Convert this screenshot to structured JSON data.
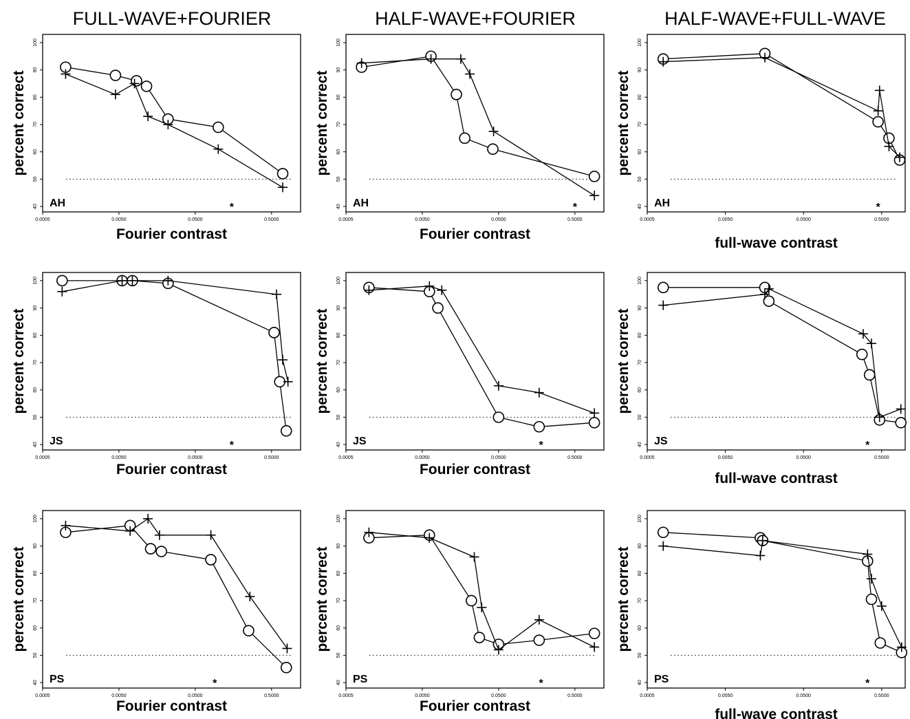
{
  "column_titles": [
    "FULL-WAVE+FOURIER",
    "HALF-WAVE+FOURIER",
    "HALF-WAVE+FULL-WAVE"
  ],
  "ylabel": "percent correct",
  "y_ticks": [
    "40",
    "50",
    "60",
    "70",
    "80",
    "90",
    "100"
  ],
  "x_ticks": [
    "0.0005",
    "0.0050",
    "0.0500",
    "0.5000"
  ],
  "chance_level": 50,
  "style": {
    "line_color": "#000000",
    "chance_line": "dotted"
  },
  "chart_data": [
    {
      "type": "line",
      "row": 0,
      "col": 0,
      "subject": "AH",
      "xlabel": "Fourier contrast",
      "xscale": "log",
      "xlim": [
        0.0005,
        1.2
      ],
      "ylim": [
        38,
        103
      ],
      "star_x": 0.15,
      "series": [
        {
          "marker": "circle",
          "x": [
            0.001,
            0.0045,
            0.0085,
            0.0115,
            0.022,
            0.1,
            0.7
          ],
          "y": [
            91,
            88,
            86,
            84,
            72,
            69,
            52
          ]
        },
        {
          "marker": "plus",
          "x": [
            0.001,
            0.0045,
            0.008,
            0.012,
            0.022,
            0.1,
            0.7
          ],
          "y": [
            88.5,
            81,
            85,
            73,
            70,
            61,
            47
          ]
        }
      ]
    },
    {
      "type": "line",
      "row": 0,
      "col": 1,
      "subject": "AH",
      "xlabel": "Fourier contrast",
      "xscale": "log",
      "xlim": [
        0.0005,
        1.2
      ],
      "ylim": [
        38,
        103
      ],
      "star_x": 0.5,
      "series": [
        {
          "marker": "circle",
          "x": [
            0.0008,
            0.0065,
            0.014,
            0.018,
            0.042,
            0.9
          ],
          "y": [
            91,
            95,
            81,
            65,
            61,
            51
          ]
        },
        {
          "marker": "plus",
          "x": [
            0.0008,
            0.0065,
            0.016,
            0.021,
            0.043,
            0.9
          ],
          "y": [
            92.5,
            94,
            94,
            88.5,
            67.5,
            44
          ]
        }
      ]
    },
    {
      "type": "line",
      "row": 0,
      "col": 2,
      "subject": "AH",
      "xlabel": "full-wave contrast",
      "xscale": "log",
      "xlim": [
        0.0005,
        1.0
      ],
      "ylim": [
        38,
        103
      ],
      "star_x": 0.45,
      "series": [
        {
          "marker": "circle",
          "x": [
            0.0008,
            0.016,
            0.45,
            0.62,
            0.85
          ],
          "y": [
            94,
            96,
            71,
            65,
            57
          ]
        },
        {
          "marker": "plus",
          "x": [
            0.0008,
            0.016,
            0.45,
            0.47,
            0.62,
            0.85
          ],
          "y": [
            93,
            94.5,
            75,
            82.5,
            62,
            58
          ]
        }
      ]
    },
    {
      "type": "line",
      "row": 1,
      "col": 0,
      "subject": "JS",
      "xlabel": "Fourier contrast",
      "xscale": "log",
      "xlim": [
        0.0005,
        1.2
      ],
      "ylim": [
        38,
        103
      ],
      "star_x": 0.15,
      "series": [
        {
          "marker": "circle",
          "x": [
            0.0009,
            0.0055,
            0.0075,
            0.022,
            0.54,
            0.64,
            0.78
          ],
          "y": [
            100,
            100,
            100,
            99,
            81,
            63,
            45
          ]
        },
        {
          "marker": "plus",
          "x": [
            0.0009,
            0.0055,
            0.0075,
            0.022,
            0.58,
            0.7,
            0.82
          ],
          "y": [
            96,
            100,
            100,
            100,
            95,
            71,
            63
          ]
        }
      ]
    },
    {
      "type": "line",
      "row": 1,
      "col": 1,
      "subject": "JS",
      "xlabel": "Fourier contrast",
      "xscale": "log",
      "xlim": [
        0.0005,
        1.2
      ],
      "ylim": [
        38,
        103
      ],
      "star_x": 0.18,
      "series": [
        {
          "marker": "circle",
          "x": [
            0.001,
            0.0062,
            0.008,
            0.05,
            0.17,
            0.9
          ],
          "y": [
            97.5,
            96,
            90,
            50,
            46.5,
            48
          ]
        },
        {
          "marker": "plus",
          "x": [
            0.001,
            0.0062,
            0.009,
            0.05,
            0.17,
            0.9
          ],
          "y": [
            96.5,
            98,
            96.5,
            61.5,
            59,
            51.5
          ]
        }
      ]
    },
    {
      "type": "line",
      "row": 1,
      "col": 2,
      "subject": "JS",
      "xlabel": "full-wave contrast",
      "xscale": "log",
      "xlim": [
        0.0005,
        1.0
      ],
      "ylim": [
        38,
        103
      ],
      "star_x": 0.33,
      "series": [
        {
          "marker": "circle",
          "x": [
            0.0008,
            0.016,
            0.018,
            0.28,
            0.35,
            0.47,
            0.88
          ],
          "y": [
            97.5,
            97.5,
            92.5,
            73,
            65.5,
            49,
            48
          ]
        },
        {
          "marker": "plus",
          "x": [
            0.0008,
            0.016,
            0.018,
            0.29,
            0.37,
            0.47,
            0.88
          ],
          "y": [
            91,
            95,
            97,
            80.5,
            77,
            50,
            53
          ]
        }
      ]
    },
    {
      "type": "line",
      "row": 2,
      "col": 0,
      "subject": "PS",
      "xlabel": "Fourier contrast",
      "xscale": "log",
      "xlim": [
        0.0005,
        1.2
      ],
      "ylim": [
        38,
        103
      ],
      "star_x": 0.09,
      "series": [
        {
          "marker": "circle",
          "x": [
            0.001,
            0.007,
            0.013,
            0.018,
            0.08,
            0.25,
            0.78
          ],
          "y": [
            95,
            97.5,
            89,
            88,
            85,
            59,
            45.5
          ]
        },
        {
          "marker": "plus",
          "x": [
            0.001,
            0.007,
            0.012,
            0.017,
            0.08,
            0.26,
            0.8
          ],
          "y": [
            97.5,
            95.5,
            100,
            94,
            94,
            71.5,
            52.5
          ]
        }
      ]
    },
    {
      "type": "line",
      "row": 2,
      "col": 1,
      "subject": "PS",
      "xlabel": "Fourier contrast",
      "xscale": "log",
      "xlim": [
        0.0005,
        1.2
      ],
      "ylim": [
        38,
        103
      ],
      "star_x": 0.18,
      "series": [
        {
          "marker": "circle",
          "x": [
            0.001,
            0.0062,
            0.022,
            0.028,
            0.05,
            0.17,
            0.9
          ],
          "y": [
            93,
            94,
            70,
            56.5,
            54,
            55.5,
            58
          ]
        },
        {
          "marker": "plus",
          "x": [
            0.001,
            0.0062,
            0.024,
            0.03,
            0.05,
            0.17,
            0.9
          ],
          "y": [
            95,
            93,
            86,
            67.5,
            52,
            63,
            53
          ]
        }
      ]
    },
    {
      "type": "line",
      "row": 2,
      "col": 2,
      "subject": "PS",
      "xlabel": "full-wave contrast",
      "xscale": "log",
      "xlim": [
        0.0005,
        1.0
      ],
      "ylim": [
        38,
        103
      ],
      "star_x": 0.33,
      "series": [
        {
          "marker": "circle",
          "x": [
            0.0008,
            0.014,
            0.015,
            0.33,
            0.37,
            0.48,
            0.9
          ],
          "y": [
            95,
            93,
            92,
            84.5,
            70.5,
            54.5,
            51
          ]
        },
        {
          "marker": "plus",
          "x": [
            0.0008,
            0.014,
            0.015,
            0.33,
            0.37,
            0.5,
            0.9
          ],
          "y": [
            90,
            86.5,
            92,
            87,
            78,
            68,
            53
          ]
        }
      ]
    }
  ]
}
